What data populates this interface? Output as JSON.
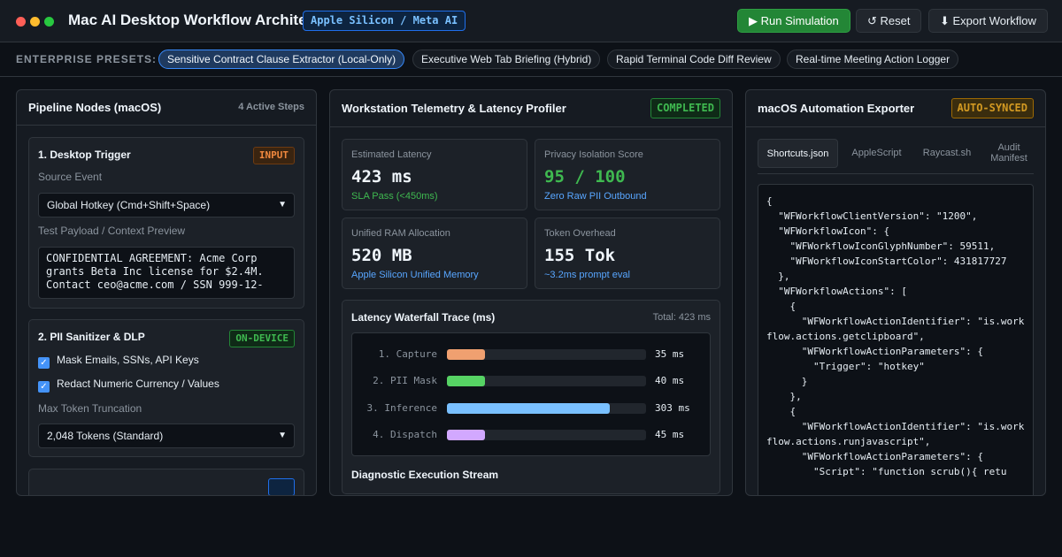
{
  "window": {
    "title": "Mac AI Desktop Workflow Architect",
    "chip": "Apple Silicon / Meta AI"
  },
  "toolbar": {
    "run_label": "▶ Run Simulation",
    "reset_label": "↺ Reset",
    "export_label": "⬇ Export Workflow"
  },
  "presets": {
    "label": "ENTERPRISE PRESETS:",
    "items": [
      "Sensitive Contract Clause Extractor (Local-Only)",
      "Executive Web Tab Briefing (Hybrid)",
      "Rapid Terminal Code Diff Review",
      "Real-time Meeting Action Logger"
    ]
  },
  "pipeline": {
    "title": "Pipeline Nodes (macOS)",
    "meta": "4 Active Steps",
    "trigger": {
      "title": "1. Desktop Trigger",
      "badge": "INPUT",
      "source_label": "Source Event",
      "source_value": "Global Hotkey (Cmd+Shift+Space)",
      "payload_label": "Test Payload / Context Preview",
      "payload_value": "CONFIDENTIAL AGREEMENT: Acme Corp grants Beta Inc license for $2.4M. Contact ceo@acme.com / SSN 999-12-"
    },
    "sanitizer": {
      "title": "2. PII Sanitizer & DLP",
      "badge": "ON-DEVICE",
      "check1": "Mask Emails, SSNs, API Keys",
      "check2": "Redact Numeric Currency / Values",
      "truncation_label": "Max Token Truncation",
      "truncation_value": "2,048 Tokens (Standard)"
    }
  },
  "telemetry": {
    "title": "Workstation Telemetry & Latency Profiler",
    "status": "COMPLETED",
    "metrics": [
      {
        "label": "Estimated Latency",
        "value": "423 ms",
        "sub": "SLA Pass (<450ms)"
      },
      {
        "label": "Privacy Isolation Score",
        "value": "95 / 100",
        "sub": "Zero Raw PII Outbound"
      },
      {
        "label": "Unified RAM Allocation",
        "value": "520 MB",
        "sub": "Apple Silicon Unified Memory"
      },
      {
        "label": "Token Overhead",
        "value": "155 Tok",
        "sub": "~3.2ms prompt eval"
      }
    ],
    "waterfall": {
      "title": "Latency Waterfall Trace (ms)",
      "total": "Total: 423 ms",
      "steps": [
        {
          "label": "1. Capture",
          "value": 35,
          "display": "35 ms",
          "color": "#f0a070"
        },
        {
          "label": "2. PII Mask",
          "value": 40,
          "display": "40 ms",
          "color": "#56d364"
        },
        {
          "label": "3. Inference",
          "value": 303,
          "display": "303 ms",
          "color": "#79c0ff"
        },
        {
          "label": "4. Dispatch",
          "value": 45,
          "display": "45 ms",
          "color": "#d2a8ff"
        }
      ]
    },
    "diag_title": "Diagnostic Execution Stream"
  },
  "exporter": {
    "title": "macOS Automation Exporter",
    "status": "AUTO-SYNCED",
    "tabs": [
      "Shortcuts.json",
      "AppleScript",
      "Raycast.sh",
      "Audit Manifest"
    ],
    "code": "{\n  \"WFWorkflowClientVersion\": \"1200\",\n  \"WFWorkflowIcon\": {\n    \"WFWorkflowIconGlyphNumber\": 59511,\n    \"WFWorkflowIconStartColor\": 431817727\n  },\n  \"WFWorkflowActions\": [\n    {\n      \"WFWorkflowActionIdentifier\": \"is.workflow.actions.getclipboard\",\n      \"WFWorkflowActionParameters\": {\n        \"Trigger\": \"hotkey\"\n      }\n    },\n    {\n      \"WFWorkflowActionIdentifier\": \"is.workflow.actions.runjavascript\",\n      \"WFWorkflowActionParameters\": {\n        \"Script\": \"function scrub(){ retu"
  }
}
